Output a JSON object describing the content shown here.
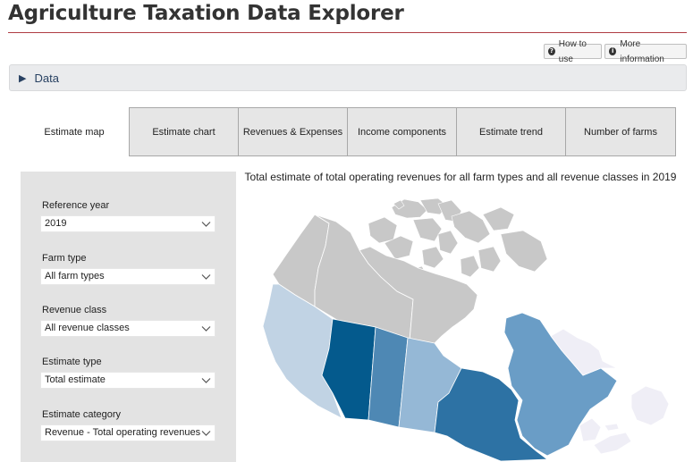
{
  "header": {
    "title": "Agriculture Taxation Data Explorer",
    "how_to_use": "How to use",
    "more_information": "More information"
  },
  "data_section": {
    "label": "Data"
  },
  "tabs": [
    {
      "label": "Estimate map",
      "active": true
    },
    {
      "label": "Estimate chart",
      "active": false
    },
    {
      "label": "Revenues & Expenses",
      "active": false
    },
    {
      "label": "Income components",
      "active": false
    },
    {
      "label": "Estimate trend",
      "active": false
    },
    {
      "label": "Number of farms",
      "active": false
    }
  ],
  "filters": {
    "reference_year": {
      "label": "Reference year",
      "value": "2019"
    },
    "farm_type": {
      "label": "Farm type",
      "value": "All farm types"
    },
    "revenue_class": {
      "label": "Revenue class",
      "value": "All revenue classes"
    },
    "estimate_type": {
      "label": "Estimate type",
      "value": "Total estimate"
    },
    "estimate_category": {
      "label": "Estimate category",
      "value": "Revenue - Total operating revenues"
    }
  },
  "map": {
    "title": "Total estimate of total operating revenues for all farm types and all revenue classes in 2019",
    "colors": {
      "no_data": "#c8c8c8",
      "level_1": "#efeef6",
      "level_2": "#c1d3e4",
      "level_3": "#95b8d6",
      "level_4": "#6a9dc6",
      "level_5": "#4e88b4",
      "level_6": "#2d72a4",
      "level_7": "#045a8d"
    },
    "regions": [
      {
        "name": "Yukon",
        "color_key": "no_data"
      },
      {
        "name": "Northwest Territories",
        "color_key": "no_data"
      },
      {
        "name": "Nunavut",
        "color_key": "no_data"
      },
      {
        "name": "British Columbia",
        "color_key": "level_2"
      },
      {
        "name": "Alberta",
        "color_key": "level_7"
      },
      {
        "name": "Saskatchewan",
        "color_key": "level_5"
      },
      {
        "name": "Manitoba",
        "color_key": "level_3"
      },
      {
        "name": "Ontario",
        "color_key": "level_6"
      },
      {
        "name": "Quebec",
        "color_key": "level_4"
      },
      {
        "name": "Newfoundland and Labrador",
        "color_key": "level_1"
      },
      {
        "name": "New Brunswick",
        "color_key": "level_1"
      },
      {
        "name": "Nova Scotia",
        "color_key": "level_1"
      },
      {
        "name": "Prince Edward Island",
        "color_key": "level_1"
      }
    ]
  }
}
